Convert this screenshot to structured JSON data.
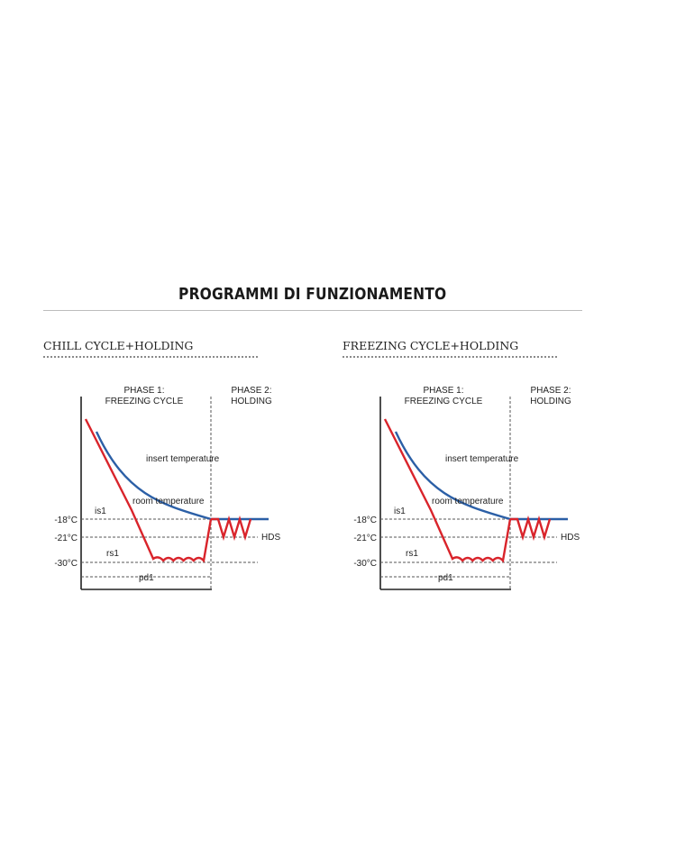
{
  "page": {
    "title": "PROGRAMMI DI FUNZIONAMENTO"
  },
  "colors": {
    "insert_curve": "#2b5fa6",
    "room_curve": "#d9242b",
    "axis": "#222222",
    "guide": "#555555"
  },
  "diagrams": [
    {
      "title": "CHILL CYCLE+HOLDING",
      "phase1_line1": "PHASE 1:",
      "phase1_line2": "FREEZING CYCLE",
      "phase2_line1": "PHASE 2:",
      "phase2_line2": "HOLDING",
      "insert_label": "insert temperature",
      "room_label": "room temperature",
      "is1_label": "is1",
      "rs1_label": "rs1",
      "pd1_label": "pd1",
      "hds_label": "HDS",
      "tick_minus18": "-18°C",
      "tick_minus21": "-21°C",
      "tick_minus30": "-30°C"
    },
    {
      "title": "FREEZING CYCLE+HOLDING",
      "phase1_line1": "PHASE 1:",
      "phase1_line2": "FREEZING CYCLE",
      "phase2_line1": "PHASE 2:",
      "phase2_line2": "HOLDING",
      "insert_label": "insert temperature",
      "room_label": "room temperature",
      "is1_label": "is1",
      "rs1_label": "rs1",
      "pd1_label": "pd1",
      "hds_label": "HDS",
      "tick_minus18": "-18°C",
      "tick_minus21": "-21°C",
      "tick_minus30": "-30°C"
    }
  ]
}
